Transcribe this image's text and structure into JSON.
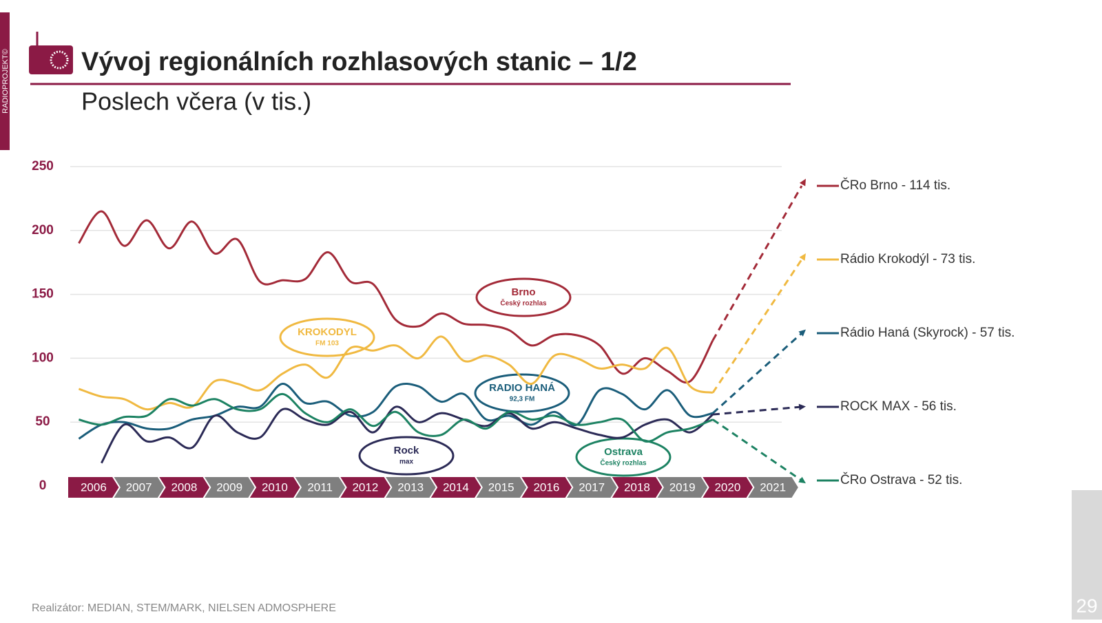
{
  "header": {
    "side_label": "RADIOPROJEKT©",
    "title": "Vývoj regionálních rozhlasových stanic – 1/2",
    "subtitle": "Poslech včera (v tis.)"
  },
  "footer": "Realizátor: MEDIAN, STEM/MARK, NIELSEN ADMOSPHERE",
  "page_number": "29",
  "logos": [
    {
      "lines": [
        "Brno",
        "Český rozhlas"
      ]
    },
    {
      "lines": [
        "KROKODYL",
        "FM 103"
      ]
    },
    {
      "lines": [
        "RADIO HANÁ",
        "92,3 FM"
      ]
    },
    {
      "lines": [
        "Rock",
        "max"
      ]
    },
    {
      "lines": [
        "Ostrava",
        "Český rozhlas"
      ]
    }
  ],
  "chart_data": {
    "type": "line",
    "x": [
      2006.25,
      2006.75,
      2007.25,
      2007.75,
      2008.25,
      2008.75,
      2009.25,
      2009.75,
      2010.25,
      2010.75,
      2011.25,
      2011.75,
      2012.25,
      2012.75,
      2013.25,
      2013.75,
      2014.25,
      2014.75,
      2015.25,
      2015.75,
      2016.25,
      2016.75,
      2017.25,
      2017.75,
      2018.25,
      2018.75,
      2019.25,
      2019.75,
      2020.25
    ],
    "xlim": [
      2006,
      2022
    ],
    "xticks": [
      {
        "value": 2006,
        "label": "2006"
      },
      {
        "value": 2007,
        "label": "2007"
      },
      {
        "value": 2008,
        "label": "2008"
      },
      {
        "value": 2009,
        "label": "2009"
      },
      {
        "value": 2010,
        "label": "2010"
      },
      {
        "value": 2011,
        "label": "2011"
      },
      {
        "value": 2012,
        "label": "2012"
      },
      {
        "value": 2013,
        "label": "2013"
      },
      {
        "value": 2014,
        "label": "2014"
      },
      {
        "value": 2015,
        "label": "2015"
      },
      {
        "value": 2016,
        "label": "2016"
      },
      {
        "value": 2017,
        "label": "2017"
      },
      {
        "value": 2018,
        "label": "2018"
      },
      {
        "value": 2019,
        "label": "2019"
      },
      {
        "value": 2020,
        "label": "2020"
      },
      {
        "value": 2021,
        "label": "2021"
      }
    ],
    "ylim": [
      0,
      250
    ],
    "yticks": [
      0,
      50,
      100,
      150,
      200,
      250
    ],
    "grid": true,
    "series": [
      {
        "name": "ČRo Brno - 114 tis.",
        "color": "#a32a38",
        "values": [
          190,
          215,
          188,
          208,
          186,
          207,
          182,
          193,
          160,
          161,
          162,
          183,
          160,
          158,
          130,
          125,
          135,
          127,
          126,
          122,
          110,
          118,
          118,
          110,
          88,
          100,
          90,
          82,
          114
        ]
      },
      {
        "name": "Rádio Krokodýl - 73 tis.",
        "color": "#f0b941",
        "values": [
          76,
          70,
          68,
          60,
          65,
          62,
          82,
          80,
          75,
          88,
          95,
          85,
          108,
          106,
          110,
          100,
          117,
          98,
          102,
          95,
          80,
          102,
          100,
          92,
          95,
          92,
          108,
          78,
          73
        ]
      },
      {
        "name": "Rádio Haná (Skyrock) - 57 tis.",
        "color": "#1a5d7a",
        "values": [
          37,
          48,
          50,
          45,
          45,
          52,
          55,
          62,
          62,
          80,
          65,
          66,
          55,
          58,
          78,
          78,
          66,
          72,
          52,
          55,
          48,
          58,
          48,
          75,
          72,
          60,
          75,
          55,
          57
        ]
      },
      {
        "name": "ROCK MAX - 56 tis.",
        "color": "#2b2a56",
        "values": [
          null,
          18,
          48,
          35,
          38,
          30,
          55,
          42,
          38,
          60,
          52,
          48,
          58,
          42,
          62,
          50,
          57,
          52,
          47,
          57,
          45,
          50,
          45,
          40,
          38,
          48,
          52,
          42,
          56
        ]
      },
      {
        "name": "ČRo Ostrava - 52 tis.",
        "color": "#1c8262",
        "values": [
          52,
          48,
          54,
          55,
          68,
          63,
          68,
          60,
          60,
          72,
          57,
          50,
          60,
          47,
          58,
          42,
          40,
          52,
          45,
          58,
          52,
          55,
          48,
          50,
          52,
          35,
          42,
          45,
          52
        ]
      }
    ]
  }
}
